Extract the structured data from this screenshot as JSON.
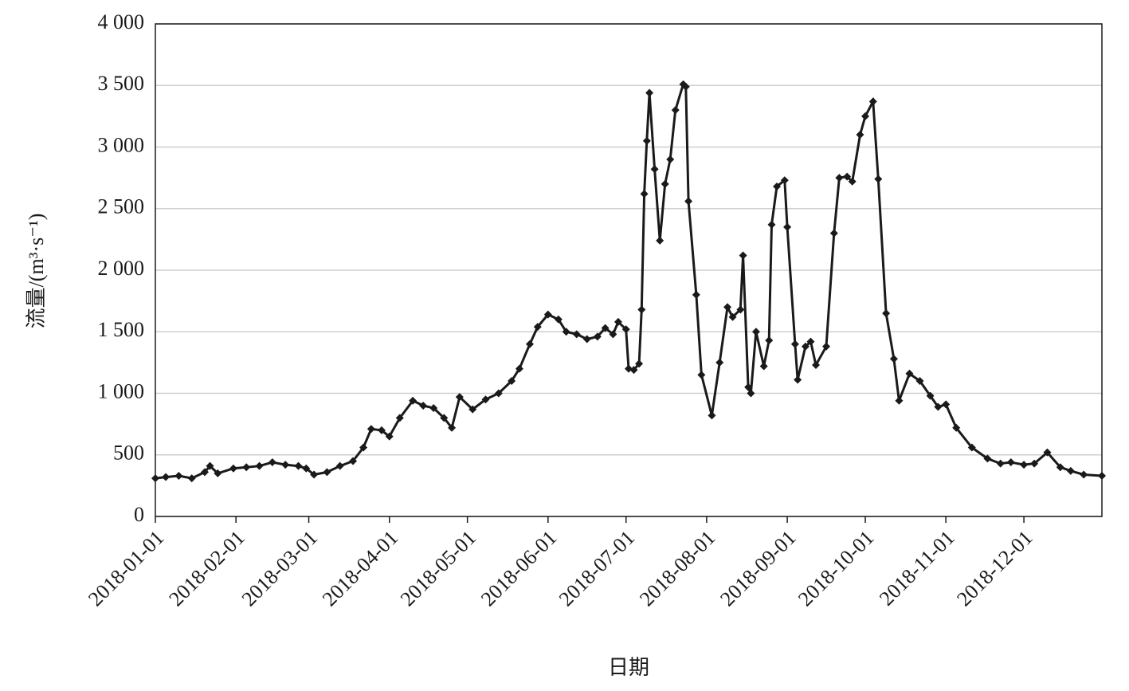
{
  "chart_data": {
    "type": "line",
    "y_label": "流量/(m³·s⁻¹)",
    "x_label": "日期",
    "color": "#1a1a1a",
    "grid": true,
    "xlim": [
      "2018-01-01",
      "2018-12-31"
    ],
    "xticks": [
      "2018-01-01",
      "2018-02-01",
      "2018-03-01",
      "2018-04-01",
      "2018-05-01",
      "2018-06-01",
      "2018-07-01",
      "2018-08-01",
      "2018-09-01",
      "2018-10-01",
      "2018-11-01",
      "2018-12-01"
    ],
    "ylim": [
      0,
      4000
    ],
    "yticks": [
      0,
      500,
      {
        "value": 1000,
        "label": "1 000"
      },
      {
        "value": 1500,
        "label": "1 500"
      },
      {
        "value": 2000,
        "label": "2 000"
      },
      {
        "value": 2500,
        "label": "2 500"
      },
      {
        "value": 3000,
        "label": "3 000"
      },
      {
        "value": 3500,
        "label": "3 500"
      },
      {
        "value": 4000,
        "label": "4 000"
      }
    ],
    "x": [
      "2018-01-01",
      "2018-01-05",
      "2018-01-10",
      "2018-01-15",
      "2018-01-20",
      "2018-01-22",
      "2018-01-25",
      "2018-01-31",
      "2018-02-05",
      "2018-02-10",
      "2018-02-15",
      "2018-02-20",
      "2018-02-25",
      "2018-02-28",
      "2018-03-03",
      "2018-03-08",
      "2018-03-13",
      "2018-03-18",
      "2018-03-22",
      "2018-03-25",
      "2018-03-29",
      "2018-04-01",
      "2018-04-05",
      "2018-04-10",
      "2018-04-14",
      "2018-04-18",
      "2018-04-22",
      "2018-04-25",
      "2018-04-28",
      "2018-05-03",
      "2018-05-08",
      "2018-05-13",
      "2018-05-18",
      "2018-05-21",
      "2018-05-25",
      "2018-05-28",
      "2018-06-01",
      "2018-06-05",
      "2018-06-08",
      "2018-06-12",
      "2018-06-16",
      "2018-06-20",
      "2018-06-23",
      "2018-06-26",
      "2018-06-28",
      "2018-07-01",
      "2018-07-02",
      "2018-07-04",
      "2018-07-06",
      "2018-07-07",
      "2018-07-08",
      "2018-07-09",
      "2018-07-10",
      "2018-07-12",
      "2018-07-14",
      "2018-07-16",
      "2018-07-18",
      "2018-07-20",
      "2018-07-23",
      "2018-07-24",
      "2018-07-25",
      "2018-07-28",
      "2018-07-30",
      "2018-08-03",
      "2018-08-06",
      "2018-08-09",
      "2018-08-11",
      "2018-08-14",
      "2018-08-15",
      "2018-08-17",
      "2018-08-18",
      "2018-08-20",
      "2018-08-23",
      "2018-08-25",
      "2018-08-26",
      "2018-08-28",
      "2018-08-31",
      "2018-09-01",
      "2018-09-04",
      "2018-09-05",
      "2018-09-08",
      "2018-09-10",
      "2018-09-12",
      "2018-09-16",
      "2018-09-19",
      "2018-09-21",
      "2018-09-24",
      "2018-09-26",
      "2018-09-29",
      "2018-10-01",
      "2018-10-04",
      "2018-10-06",
      "2018-10-09",
      "2018-10-12",
      "2018-10-14",
      "2018-10-18",
      "2018-10-22",
      "2018-10-26",
      "2018-10-29",
      "2018-11-01",
      "2018-11-05",
      "2018-11-11",
      "2018-11-17",
      "2018-11-22",
      "2018-11-26",
      "2018-12-01",
      "2018-12-05",
      "2018-12-10",
      "2018-12-15",
      "2018-12-19",
      "2018-12-24",
      "2018-12-31"
    ],
    "values": [
      310,
      320,
      330,
      310,
      360,
      410,
      350,
      390,
      400,
      410,
      440,
      420,
      410,
      390,
      340,
      360,
      410,
      450,
      560,
      710,
      700,
      650,
      800,
      940,
      900,
      880,
      800,
      720,
      970,
      870,
      950,
      1000,
      1100,
      1200,
      1400,
      1540,
      1640,
      1600,
      1500,
      1480,
      1440,
      1460,
      1530,
      1480,
      1580,
      1520,
      1200,
      1190,
      1240,
      1680,
      2620,
      3050,
      3440,
      2820,
      2240,
      2700,
      2900,
      3300,
      3510,
      3490,
      2560,
      1800,
      1150,
      820,
      1250,
      1700,
      1620,
      1680,
      2120,
      1050,
      1000,
      1500,
      1220,
      1430,
      2370,
      2680,
      2730,
      2350,
      1400,
      1110,
      1380,
      1420,
      1230,
      1380,
      2300,
      2750,
      2760,
      2720,
      3100,
      3250,
      3370,
      2740,
      1650,
      1280,
      940,
      1160,
      1100,
      980,
      890,
      910,
      720,
      560,
      470,
      430,
      440,
      420,
      430,
      520,
      400,
      370,
      340,
      330
    ]
  }
}
